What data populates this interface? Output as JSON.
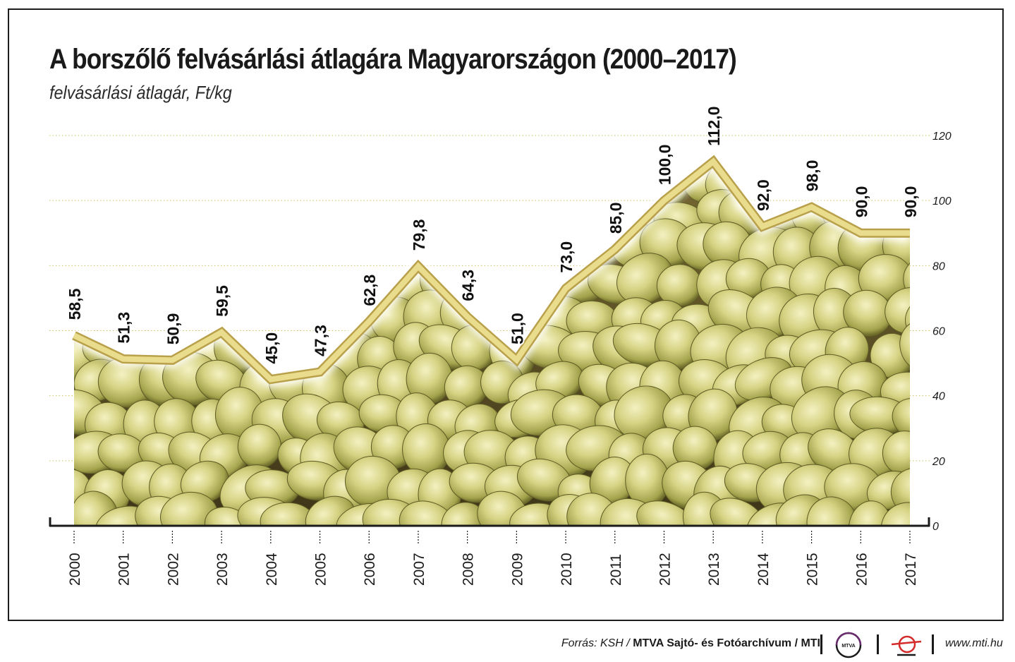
{
  "title": "A borszőlő felvásárlási átlagára Magyarországon (2000–2017)",
  "subtitle": "felvásárlási átlagár, Ft/kg",
  "chart_data": {
    "type": "area",
    "title": "A borszőlő felvásárlási átlagára Magyarországon (2000–2017)",
    "subtitle": "felvásárlási átlagár, Ft/kg",
    "categories": [
      "2000",
      "2001",
      "2002",
      "2003",
      "2004",
      "2005",
      "2006",
      "2007",
      "2008",
      "2009",
      "2010",
      "2011",
      "2012",
      "2013",
      "2014",
      "2015",
      "2016",
      "2017"
    ],
    "values": [
      58.5,
      51.3,
      50.9,
      59.5,
      45.0,
      47.3,
      62.8,
      79.8,
      64.3,
      51.0,
      73.0,
      85.0,
      100.0,
      112.0,
      92.0,
      98.0,
      90.0,
      90.0
    ],
    "data_labels": [
      "58,5",
      "51,3",
      "50,9",
      "59,5",
      "45,0",
      "47,3",
      "62,8",
      "79,8",
      "64,3",
      "51,0",
      "73,0",
      "85,0",
      "100,0",
      "112,0",
      "92,0",
      "98,0",
      "90,0",
      "90,0"
    ],
    "yticks": [
      "0",
      "20",
      "40",
      "60",
      "80",
      "100",
      "120"
    ],
    "ylim": [
      0,
      120
    ],
    "y_axis_side": "right",
    "grid": true,
    "fill": "grape photograph",
    "line_color": "#e9dc8c",
    "line_outline": "#b9a04a"
  },
  "footer": {
    "source_prefix": "Forrás: KSH /",
    "source_bold": "MTVA Sajtó- és Fotóarchívum / MTI",
    "logo_text": "MTVA",
    "url": "www.mti.hu"
  }
}
